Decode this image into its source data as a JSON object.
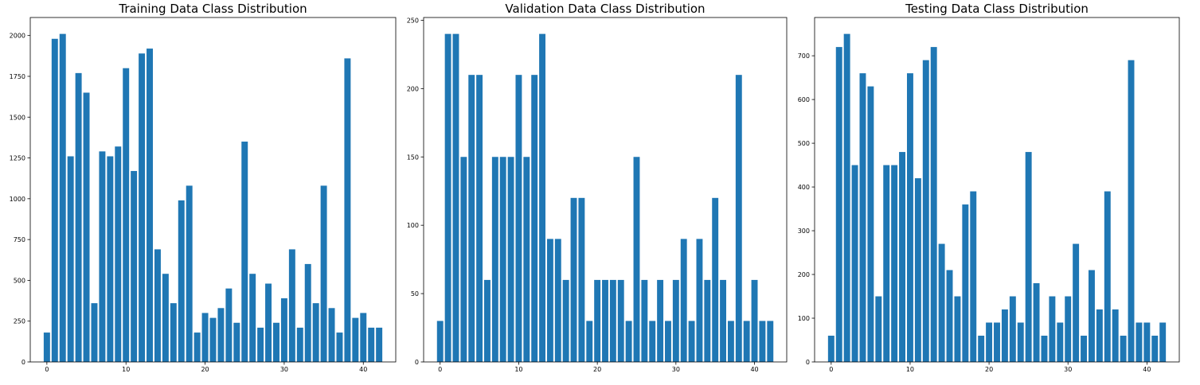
{
  "chart_data": [
    {
      "type": "bar",
      "title": "Training Data Class Distribution",
      "xlabel": "",
      "ylabel": "",
      "color": "#1f77b4",
      "x": [
        0,
        1,
        2,
        3,
        4,
        5,
        6,
        7,
        8,
        9,
        10,
        11,
        12,
        13,
        14,
        15,
        16,
        17,
        18,
        19,
        20,
        21,
        22,
        23,
        24,
        25,
        26,
        27,
        28,
        29,
        30,
        31,
        32,
        33,
        34,
        35,
        36,
        37,
        38,
        39,
        40,
        41,
        42
      ],
      "values": [
        180,
        1980,
        2010,
        1260,
        1770,
        1650,
        360,
        1290,
        1260,
        1320,
        1800,
        1170,
        1890,
        1920,
        690,
        540,
        360,
        990,
        1080,
        180,
        300,
        270,
        330,
        450,
        240,
        1350,
        540,
        210,
        480,
        240,
        390,
        690,
        210,
        600,
        360,
        1080,
        330,
        180,
        1860,
        270,
        300,
        210,
        210
      ],
      "xlim": [
        -2.1,
        44.1
      ],
      "ylim": [
        0,
        2110.5
      ],
      "xticks": [
        0,
        10,
        20,
        30,
        40
      ],
      "xtick_labels": [
        "0",
        "10",
        "20",
        "30",
        "40"
      ],
      "yticks": [
        0,
        250,
        500,
        750,
        1000,
        1250,
        1500,
        1750,
        2000
      ],
      "ytick_labels": [
        "0",
        "250",
        "500",
        "750",
        "1000",
        "1250",
        "1500",
        "1750",
        "2000"
      ],
      "grid": false
    },
    {
      "type": "bar",
      "title": "Validation Data Class Distribution",
      "xlabel": "",
      "ylabel": "",
      "color": "#1f77b4",
      "x": [
        0,
        1,
        2,
        3,
        4,
        5,
        6,
        7,
        8,
        9,
        10,
        11,
        12,
        13,
        14,
        15,
        16,
        17,
        18,
        19,
        20,
        21,
        22,
        23,
        24,
        25,
        26,
        27,
        28,
        29,
        30,
        31,
        32,
        33,
        34,
        35,
        36,
        37,
        38,
        39,
        40,
        41,
        42
      ],
      "values": [
        30,
        240,
        240,
        150,
        210,
        210,
        60,
        150,
        150,
        150,
        210,
        150,
        210,
        240,
        90,
        90,
        60,
        120,
        120,
        30,
        60,
        60,
        60,
        60,
        30,
        150,
        60,
        30,
        60,
        30,
        60,
        90,
        30,
        90,
        60,
        120,
        60,
        30,
        210,
        30,
        60,
        30,
        30
      ],
      "xlim": [
        -2.1,
        44.1
      ],
      "ylim": [
        0,
        252
      ],
      "xticks": [
        0,
        10,
        20,
        30,
        40
      ],
      "xtick_labels": [
        "0",
        "10",
        "20",
        "30",
        "40"
      ],
      "yticks": [
        0,
        50,
        100,
        150,
        200,
        250
      ],
      "ytick_labels": [
        "0",
        "50",
        "100",
        "150",
        "200",
        "250"
      ],
      "grid": false
    },
    {
      "type": "bar",
      "title": "Testing Data Class Distribution",
      "xlabel": "",
      "ylabel": "",
      "color": "#1f77b4",
      "x": [
        0,
        1,
        2,
        3,
        4,
        5,
        6,
        7,
        8,
        9,
        10,
        11,
        12,
        13,
        14,
        15,
        16,
        17,
        18,
        19,
        20,
        21,
        22,
        23,
        24,
        25,
        26,
        27,
        28,
        29,
        30,
        31,
        32,
        33,
        34,
        35,
        36,
        37,
        38,
        39,
        40,
        41,
        42
      ],
      "values": [
        60,
        720,
        750,
        450,
        660,
        630,
        150,
        450,
        450,
        480,
        660,
        420,
        690,
        720,
        270,
        210,
        150,
        360,
        390,
        60,
        90,
        90,
        120,
        150,
        90,
        480,
        180,
        60,
        150,
        90,
        150,
        270,
        60,
        210,
        120,
        390,
        120,
        60,
        690,
        90,
        90,
        60,
        90
      ],
      "xlim": [
        -2.1,
        44.1
      ],
      "ylim": [
        0,
        787.5
      ],
      "xticks": [
        0,
        10,
        20,
        30,
        40
      ],
      "xtick_labels": [
        "0",
        "10",
        "20",
        "30",
        "40"
      ],
      "yticks": [
        0,
        100,
        200,
        300,
        400,
        500,
        600,
        700
      ],
      "ytick_labels": [
        "0",
        "100",
        "200",
        "300",
        "400",
        "500",
        "600",
        "700"
      ],
      "grid": false
    }
  ]
}
